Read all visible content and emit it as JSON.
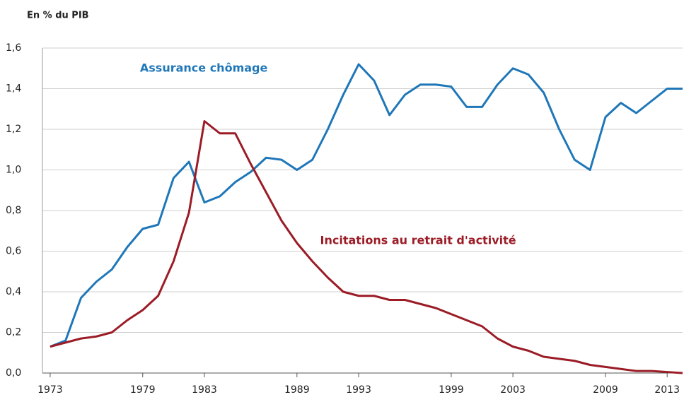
{
  "chart_data": {
    "type": "line",
    "ylabel": "En % du PIB",
    "x": [
      1973,
      1974,
      1975,
      1976,
      1977,
      1978,
      1979,
      1980,
      1981,
      1982,
      1983,
      1984,
      1985,
      1986,
      1987,
      1988,
      1989,
      1990,
      1991,
      1992,
      1993,
      1994,
      1995,
      1996,
      1997,
      1998,
      1999,
      2000,
      2001,
      2002,
      2003,
      2004,
      2005,
      2006,
      2007,
      2008,
      2009,
      2010,
      2011,
      2012,
      2013,
      2014
    ],
    "series": [
      {
        "name": "Assurance chômage",
        "color": "#1f77b8",
        "values": [
          0.13,
          0.16,
          0.37,
          0.45,
          0.51,
          0.62,
          0.71,
          0.73,
          0.96,
          1.04,
          0.84,
          0.87,
          0.94,
          0.99,
          1.06,
          1.05,
          1.0,
          1.05,
          1.2,
          1.37,
          1.52,
          1.44,
          1.27,
          1.37,
          1.42,
          1.42,
          1.41,
          1.31,
          1.31,
          1.42,
          1.5,
          1.47,
          1.38,
          1.2,
          1.05,
          1.0,
          1.26,
          1.33,
          1.28,
          1.34,
          1.4,
          1.4
        ]
      },
      {
        "name": "Incitations au retrait d'activité",
        "color": "#9b1c26",
        "values": [
          0.13,
          0.15,
          0.17,
          0.18,
          0.2,
          0.26,
          0.31,
          0.38,
          0.55,
          0.79,
          1.24,
          1.18,
          1.18,
          1.03,
          0.89,
          0.75,
          0.64,
          0.55,
          0.47,
          0.4,
          0.38,
          0.38,
          0.36,
          0.36,
          0.34,
          0.32,
          0.29,
          0.26,
          0.23,
          0.17,
          0.13,
          0.11,
          0.08,
          0.07,
          0.06,
          0.04,
          0.03,
          0.02,
          0.01,
          0.01,
          0.005,
          0
        ]
      }
    ],
    "xlim": [
      1972.5,
      2014
    ],
    "xticks": [
      1973,
      1979,
      1983,
      1989,
      1993,
      1999,
      2003,
      2009,
      2013
    ],
    "ylim": [
      0,
      1.6
    ],
    "yticks": [
      {
        "value": 0,
        "label": "0,0"
      },
      {
        "value": 0.2,
        "label": "0,2"
      },
      {
        "value": 0.4,
        "label": "0,4"
      },
      {
        "value": 0.6,
        "label": "0,6"
      },
      {
        "value": 0.8,
        "label": "0,8"
      },
      {
        "value": 1.0,
        "label": "1,0"
      },
      {
        "value": 1.2,
        "label": "1,2"
      },
      {
        "value": 1.4,
        "label": "1,4"
      },
      {
        "value": 1.6,
        "label": "1,6"
      }
    ],
    "grid": true
  }
}
